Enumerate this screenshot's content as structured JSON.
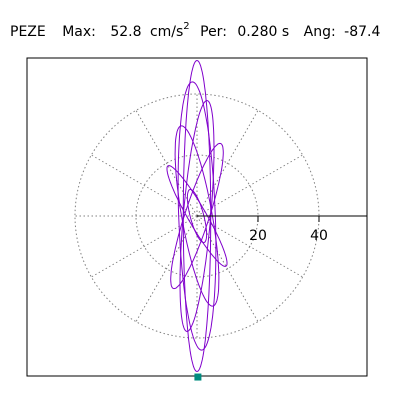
{
  "header": {
    "station": "PEZE",
    "max_label": "Max:",
    "max_value": "52.8",
    "max_unit": "cm/s",
    "max_unit_exp": "2",
    "per_label": "Per:",
    "per_value": "0.280 s",
    "ang_label": "Ang:",
    "ang_value": "-87.4"
  },
  "colors": {
    "trace": "#8000cc",
    "grid": "#808080",
    "axis": "#000000",
    "marker": "#008c80"
  },
  "chart_data": {
    "type": "scatter",
    "title": "PEZE",
    "axis_range": [
      -55,
      55
    ],
    "rings": [
      20,
      40
    ],
    "radial_spokes_deg": [
      0,
      30,
      60,
      90,
      120,
      150,
      180,
      210,
      240,
      270,
      300,
      330
    ],
    "tick_labels": [
      "20",
      "40"
    ],
    "grid": true,
    "max_point": [
      0.3,
      -52.8
    ],
    "orbit_components": [
      {
        "a": 9.0,
        "b": 2.2,
        "theta": -75
      },
      {
        "a": 19.0,
        "b": 3.0,
        "theta": -60
      },
      {
        "a": 25.0,
        "b": 4.0,
        "theta": 72
      },
      {
        "a": 30.0,
        "b": 5.0,
        "theta": -80
      },
      {
        "a": 38.0,
        "b": 4.5,
        "theta": 85
      },
      {
        "a": 44.0,
        "b": 6.0,
        "theta": -88
      },
      {
        "a": 51.0,
        "b": 4.5,
        "theta": 90
      }
    ]
  }
}
